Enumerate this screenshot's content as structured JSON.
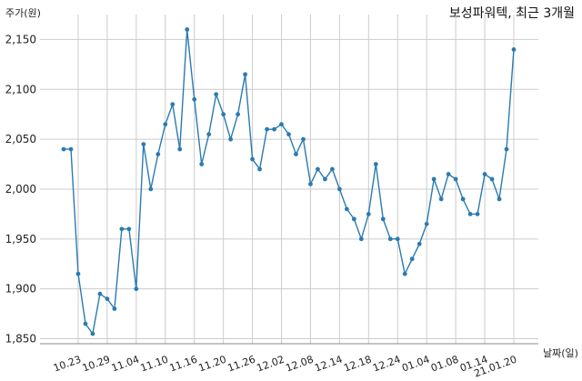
{
  "chart_data": {
    "type": "line",
    "title": "보성파워텍, 최근 3개월",
    "ylabel": "주가(원)",
    "xlabel": "날짜(일)",
    "ylim": [
      1845,
      2175
    ],
    "yticks": [
      1850,
      1900,
      1950,
      2000,
      2050,
      2100,
      2150
    ],
    "ytick_labels": [
      "1,850",
      "1,900",
      "1,950",
      "2,000",
      "2,050",
      "2,100",
      "2,150"
    ],
    "xtick_labels": [
      "10.23",
      "10.29",
      "11.04",
      "11.10",
      "11.16",
      "11.20",
      "11.26",
      "12.02",
      "12.08",
      "12.14",
      "12.18",
      "12.24",
      "01.04",
      "01.08",
      "01.14",
      "21.01.20"
    ],
    "xtick_index": [
      2,
      6,
      10,
      14,
      18,
      22,
      26,
      30,
      34,
      38,
      42,
      46,
      50,
      54,
      58,
      62
    ],
    "grid": true,
    "color": "#2b7bb0",
    "values": [
      2040,
      2040,
      1915,
      1865,
      1855,
      1895,
      1890,
      1880,
      1960,
      1960,
      1900,
      2045,
      2000,
      2035,
      2065,
      2085,
      2040,
      2160,
      2090,
      2025,
      2055,
      2095,
      2075,
      2050,
      2075,
      2115,
      2030,
      2020,
      2060,
      2060,
      2065,
      2055,
      2035,
      2050,
      2005,
      2020,
      2010,
      2020,
      2000,
      1980,
      1970,
      1950,
      1975,
      2025,
      1970,
      1950,
      1950,
      1915,
      1930,
      1945,
      1965,
      2010,
      1990,
      2015,
      2010,
      1990,
      1975,
      1975,
      2015,
      2010,
      1990,
      2040,
      2140
    ]
  }
}
